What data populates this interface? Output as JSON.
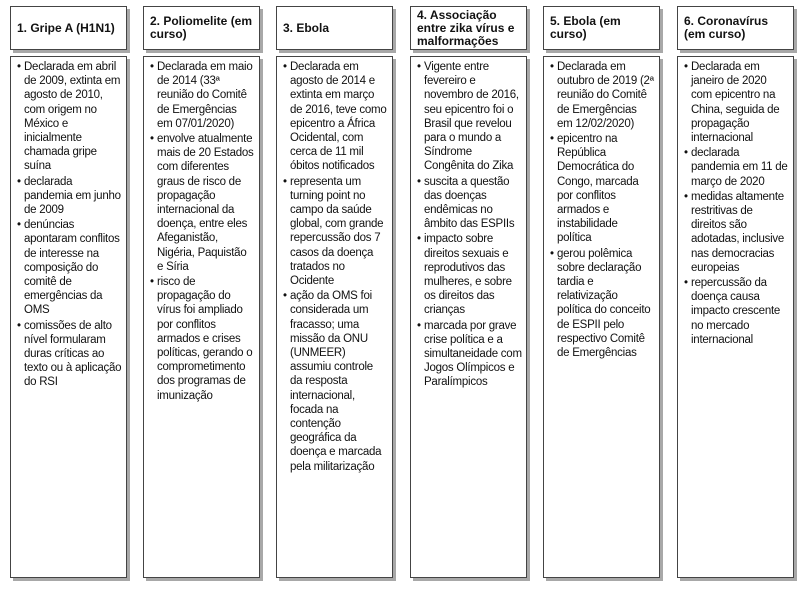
{
  "columns": [
    {
      "title": "1. Gripe A (H1N1)",
      "items": [
        "Declarada em abril de 2009, extinta em agosto de 2010, com origem no México e inicialmente chamada gripe suína",
        "declarada pandemia em junho de 2009",
        "denúncias apontaram conflitos de interesse na composição do comitê de emergências da OMS",
        "comissões de alto nível formularam duras críticas ao texto ou à aplicação do RSI"
      ]
    },
    {
      "title": "2. Poliomelite (em curso)",
      "items": [
        "Declarada em maio de 2014 (33ª reunião do Comitê de Emergências em 07/01/2020)",
        "envolve atualmente mais de 20 Estados com diferentes graus de risco de propagação internacional da doença, entre eles Afeganistão, Nigéria, Paquistão e Síria",
        "risco de propagação do vírus foi ampliado por conflitos armados e crises políticas, gerando o comprometimento dos programas de imunização"
      ]
    },
    {
      "title": "3. Ebola",
      "items": [
        "Declarada em agosto de 2014 e extinta em março de 2016, teve como epicentro a África Ocidental, com cerca de 11 mil óbitos notificados",
        "representa um turning point no campo da saúde global, com grande repercussão dos 7 casos da doença tratados no Ocidente",
        "ação da OMS foi considerada um fracasso; uma missão da ONU (UNMEER) assumiu controle da resposta internacional, focada na contenção geográfica da doença e marcada pela militarização"
      ]
    },
    {
      "title": "4. Associação entre zika vírus e malformações",
      "items": [
        "Vigente entre fevereiro e novembro de 2016, seu epicentro foi o Brasil que revelou para o mundo a Síndrome Congênita do Zika",
        "suscita a questão das doenças endêmicas no âmbito das ESPIIs",
        "impacto sobre direitos sexuais e reprodutivos das mulheres, e sobre os direitos das crianças",
        "marcada por grave crise política e a simultaneidade com Jogos Olímpicos e Paralímpicos"
      ]
    },
    {
      "title": "5. Ebola (em curso)",
      "items": [
        "Declarada em outubro de 2019 (2ª reunião do Comitê de Emergências em 12/02/2020)",
        "epicentro na República Democrática do Congo, marcada por conflitos armados e instabilidade política",
        "gerou polêmica sobre declaração tardia e relativização política do conceito de ESPII pelo respectivo Comitê de Emergências"
      ]
    },
    {
      "title": "6. Coronavírus (em curso)",
      "items": [
        "Declarada em janeiro de 2020 com epicentro na China, seguida de propagação internacional",
        "declarada pandemia em 11 de março de 2020",
        "medidas altamente restritivas de direitos são adotadas, inclusive nas democracias europeias",
        "repercussão da doença causa impacto crescente no mercado internacional"
      ]
    }
  ]
}
